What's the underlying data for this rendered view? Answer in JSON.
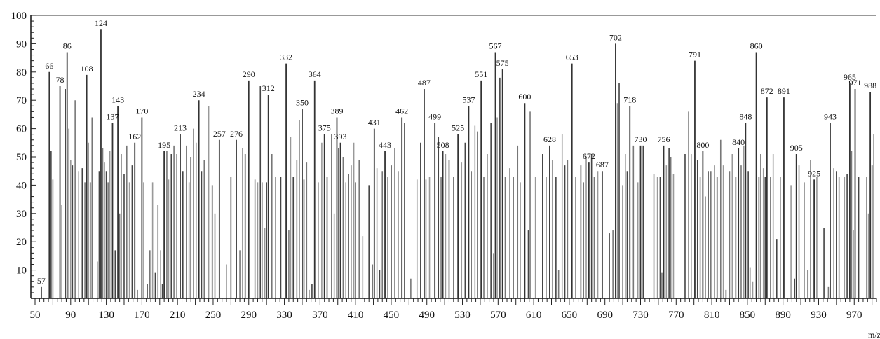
{
  "chart_data": {
    "type": "bar",
    "title": "",
    "xlabel": "m/z",
    "ylabel": "",
    "xlim": [
      50,
      995
    ],
    "ylim": [
      0,
      100
    ],
    "grid": false,
    "x_ticks": [
      "50",
      "90",
      "130",
      "170",
      "210",
      "250",
      "290",
      "330",
      "370",
      "410",
      "450",
      "490",
      "530",
      "570",
      "610",
      "650",
      "690",
      "730",
      "770",
      "810",
      "850",
      "890",
      "930",
      "970"
    ],
    "y_ticks": [
      "10",
      "20",
      "30",
      "40",
      "50",
      "60",
      "70",
      "80",
      "90",
      "100"
    ],
    "labeled_peaks": [
      {
        "mz": 57,
        "intensity": 4,
        "label": "57"
      },
      {
        "mz": 66,
        "intensity": 80,
        "label": "66"
      },
      {
        "mz": 78,
        "intensity": 75,
        "label": "78"
      },
      {
        "mz": 86,
        "intensity": 87,
        "label": "86"
      },
      {
        "mz": 108,
        "intensity": 79,
        "label": "108"
      },
      {
        "mz": 124,
        "intensity": 95,
        "label": "124"
      },
      {
        "mz": 137,
        "intensity": 62,
        "label": "137"
      },
      {
        "mz": 143,
        "intensity": 68,
        "label": "143"
      },
      {
        "mz": 162,
        "intensity": 55,
        "label": "162"
      },
      {
        "mz": 170,
        "intensity": 64,
        "label": "170"
      },
      {
        "mz": 195,
        "intensity": 52,
        "label": "195"
      },
      {
        "mz": 213,
        "intensity": 58,
        "label": "213"
      },
      {
        "mz": 234,
        "intensity": 70,
        "label": "234"
      },
      {
        "mz": 257,
        "intensity": 56,
        "label": "257"
      },
      {
        "mz": 276,
        "intensity": 56,
        "label": "276"
      },
      {
        "mz": 290,
        "intensity": 77,
        "label": "290"
      },
      {
        "mz": 312,
        "intensity": 72,
        "label": "312"
      },
      {
        "mz": 332,
        "intensity": 83,
        "label": "332"
      },
      {
        "mz": 350,
        "intensity": 67,
        "label": "350"
      },
      {
        "mz": 364,
        "intensity": 77,
        "label": "364"
      },
      {
        "mz": 375,
        "intensity": 58,
        "label": "375"
      },
      {
        "mz": 389,
        "intensity": 64,
        "label": "389"
      },
      {
        "mz": 393,
        "intensity": 55,
        "label": "393"
      },
      {
        "mz": 431,
        "intensity": 60,
        "label": "431"
      },
      {
        "mz": 443,
        "intensity": 52,
        "label": "443"
      },
      {
        "mz": 462,
        "intensity": 64,
        "label": "462"
      },
      {
        "mz": 487,
        "intensity": 74,
        "label": "487"
      },
      {
        "mz": 499,
        "intensity": 62,
        "label": "499"
      },
      {
        "mz": 508,
        "intensity": 52,
        "label": "508"
      },
      {
        "mz": 525,
        "intensity": 58,
        "label": "525"
      },
      {
        "mz": 537,
        "intensity": 68,
        "label": "537"
      },
      {
        "mz": 551,
        "intensity": 77,
        "label": "551"
      },
      {
        "mz": 567,
        "intensity": 87,
        "label": "567"
      },
      {
        "mz": 575,
        "intensity": 81,
        "label": "575"
      },
      {
        "mz": 600,
        "intensity": 69,
        "label": "600"
      },
      {
        "mz": 628,
        "intensity": 54,
        "label": "628"
      },
      {
        "mz": 653,
        "intensity": 83,
        "label": "653"
      },
      {
        "mz": 672,
        "intensity": 48,
        "label": "672"
      },
      {
        "mz": 687,
        "intensity": 45,
        "label": "687"
      },
      {
        "mz": 702,
        "intensity": 90,
        "label": "702"
      },
      {
        "mz": 718,
        "intensity": 68,
        "label": "718"
      },
      {
        "mz": 730,
        "intensity": 54,
        "label": "730"
      },
      {
        "mz": 756,
        "intensity": 54,
        "label": "756"
      },
      {
        "mz": 791,
        "intensity": 84,
        "label": "791"
      },
      {
        "mz": 800,
        "intensity": 52,
        "label": "800"
      },
      {
        "mz": 840,
        "intensity": 53,
        "label": "840"
      },
      {
        "mz": 848,
        "intensity": 62,
        "label": "848"
      },
      {
        "mz": 860,
        "intensity": 87,
        "label": "860"
      },
      {
        "mz": 872,
        "intensity": 71,
        "label": "872"
      },
      {
        "mz": 891,
        "intensity": 71,
        "label": "891"
      },
      {
        "mz": 905,
        "intensity": 51,
        "label": "905"
      },
      {
        "mz": 925,
        "intensity": 42,
        "label": "925"
      },
      {
        "mz": 943,
        "intensity": 62,
        "label": "943"
      },
      {
        "mz": 965,
        "intensity": 76,
        "label": "965"
      },
      {
        "mz": 971,
        "intensity": 74,
        "label": "971"
      },
      {
        "mz": 988,
        "intensity": 73,
        "label": "988"
      }
    ],
    "unlabeled_peaks": [
      {
        "mz": 68,
        "intensity": 52
      },
      {
        "mz": 70,
        "intensity": 42
      },
      {
        "mz": 80,
        "intensity": 33
      },
      {
        "mz": 84,
        "intensity": 74
      },
      {
        "mz": 88,
        "intensity": 60
      },
      {
        "mz": 90,
        "intensity": 49
      },
      {
        "mz": 92,
        "intensity": 47
      },
      {
        "mz": 95,
        "intensity": 70
      },
      {
        "mz": 99,
        "intensity": 45
      },
      {
        "mz": 103,
        "intensity": 46
      },
      {
        "mz": 106,
        "intensity": 41
      },
      {
        "mz": 110,
        "intensity": 55
      },
      {
        "mz": 112,
        "intensity": 41
      },
      {
        "mz": 114,
        "intensity": 64
      },
      {
        "mz": 120,
        "intensity": 13
      },
      {
        "mz": 122,
        "intensity": 45
      },
      {
        "mz": 126,
        "intensity": 53
      },
      {
        "mz": 128,
        "intensity": 48
      },
      {
        "mz": 130,
        "intensity": 45
      },
      {
        "mz": 132,
        "intensity": 41
      },
      {
        "mz": 134,
        "intensity": 52
      },
      {
        "mz": 140,
        "intensity": 17
      },
      {
        "mz": 145,
        "intensity": 30
      },
      {
        "mz": 147,
        "intensity": 51
      },
      {
        "mz": 150,
        "intensity": 44
      },
      {
        "mz": 153,
        "intensity": 54
      },
      {
        "mz": 156,
        "intensity": 41
      },
      {
        "mz": 159,
        "intensity": 47
      },
      {
        "mz": 165,
        "intensity": 3
      },
      {
        "mz": 172,
        "intensity": 41
      },
      {
        "mz": 176,
        "intensity": 5
      },
      {
        "mz": 179,
        "intensity": 17
      },
      {
        "mz": 182,
        "intensity": 41
      },
      {
        "mz": 185,
        "intensity": 9
      },
      {
        "mz": 188,
        "intensity": 33
      },
      {
        "mz": 191,
        "intensity": 17
      },
      {
        "mz": 193,
        "intensity": 5
      },
      {
        "mz": 198,
        "intensity": 52
      },
      {
        "mz": 200,
        "intensity": 42
      },
      {
        "mz": 203,
        "intensity": 51
      },
      {
        "mz": 206,
        "intensity": 54
      },
      {
        "mz": 209,
        "intensity": 51
      },
      {
        "mz": 216,
        "intensity": 45
      },
      {
        "mz": 220,
        "intensity": 54
      },
      {
        "mz": 223,
        "intensity": 41
      },
      {
        "mz": 225,
        "intensity": 50
      },
      {
        "mz": 228,
        "intensity": 60
      },
      {
        "mz": 231,
        "intensity": 55
      },
      {
        "mz": 237,
        "intensity": 45
      },
      {
        "mz": 240,
        "intensity": 49
      },
      {
        "mz": 245,
        "intensity": 68
      },
      {
        "mz": 249,
        "intensity": 40
      },
      {
        "mz": 252,
        "intensity": 30
      },
      {
        "mz": 265,
        "intensity": 12
      },
      {
        "mz": 270,
        "intensity": 43
      },
      {
        "mz": 280,
        "intensity": 17
      },
      {
        "mz": 283,
        "intensity": 53
      },
      {
        "mz": 286,
        "intensity": 51
      },
      {
        "mz": 297,
        "intensity": 42
      },
      {
        "mz": 300,
        "intensity": 41
      },
      {
        "mz": 303,
        "intensity": 75
      },
      {
        "mz": 305,
        "intensity": 41
      },
      {
        "mz": 308,
        "intensity": 25
      },
      {
        "mz": 310,
        "intensity": 41
      },
      {
        "mz": 316,
        "intensity": 51
      },
      {
        "mz": 320,
        "intensity": 43
      },
      {
        "mz": 326,
        "intensity": 43
      },
      {
        "mz": 335,
        "intensity": 24
      },
      {
        "mz": 337,
        "intensity": 57
      },
      {
        "mz": 340,
        "intensity": 43
      },
      {
        "mz": 344,
        "intensity": 49
      },
      {
        "mz": 347,
        "intensity": 63
      },
      {
        "mz": 352,
        "intensity": 42
      },
      {
        "mz": 355,
        "intensity": 48
      },
      {
        "mz": 358,
        "intensity": 3
      },
      {
        "mz": 361,
        "intensity": 5
      },
      {
        "mz": 368,
        "intensity": 41
      },
      {
        "mz": 372,
        "intensity": 55
      },
      {
        "mz": 378,
        "intensity": 43
      },
      {
        "mz": 383,
        "intensity": 58
      },
      {
        "mz": 386,
        "intensity": 30
      },
      {
        "mz": 391,
        "intensity": 53
      },
      {
        "mz": 396,
        "intensity": 50
      },
      {
        "mz": 399,
        "intensity": 41
      },
      {
        "mz": 402,
        "intensity": 44
      },
      {
        "mz": 405,
        "intensity": 47
      },
      {
        "mz": 408,
        "intensity": 55
      },
      {
        "mz": 410,
        "intensity": 41
      },
      {
        "mz": 414,
        "intensity": 49
      },
      {
        "mz": 418,
        "intensity": 22
      },
      {
        "mz": 425,
        "intensity": 40
      },
      {
        "mz": 429,
        "intensity": 12
      },
      {
        "mz": 434,
        "intensity": 46
      },
      {
        "mz": 437,
        "intensity": 10
      },
      {
        "mz": 440,
        "intensity": 45
      },
      {
        "mz": 446,
        "intensity": 43
      },
      {
        "mz": 450,
        "intensity": 47
      },
      {
        "mz": 454,
        "intensity": 53
      },
      {
        "mz": 458,
        "intensity": 45
      },
      {
        "mz": 465,
        "intensity": 62
      },
      {
        "mz": 472,
        "intensity": 7
      },
      {
        "mz": 479,
        "intensity": 42
      },
      {
        "mz": 483,
        "intensity": 55
      },
      {
        "mz": 489,
        "intensity": 42
      },
      {
        "mz": 493,
        "intensity": 43
      },
      {
        "mz": 503,
        "intensity": 57
      },
      {
        "mz": 506,
        "intensity": 43
      },
      {
        "mz": 511,
        "intensity": 51
      },
      {
        "mz": 515,
        "intensity": 49
      },
      {
        "mz": 520,
        "intensity": 43
      },
      {
        "mz": 529,
        "intensity": 48
      },
      {
        "mz": 533,
        "intensity": 55
      },
      {
        "mz": 540,
        "intensity": 45
      },
      {
        "mz": 544,
        "intensity": 61
      },
      {
        "mz": 547,
        "intensity": 59
      },
      {
        "mz": 554,
        "intensity": 43
      },
      {
        "mz": 558,
        "intensity": 51
      },
      {
        "mz": 562,
        "intensity": 62
      },
      {
        "mz": 565,
        "intensity": 16
      },
      {
        "mz": 569,
        "intensity": 64
      },
      {
        "mz": 572,
        "intensity": 78
      },
      {
        "mz": 578,
        "intensity": 43
      },
      {
        "mz": 583,
        "intensity": 46
      },
      {
        "mz": 587,
        "intensity": 43
      },
      {
        "mz": 592,
        "intensity": 54
      },
      {
        "mz": 595,
        "intensity": 41
      },
      {
        "mz": 604,
        "intensity": 24
      },
      {
        "mz": 606,
        "intensity": 66
      },
      {
        "mz": 612,
        "intensity": 43
      },
      {
        "mz": 620,
        "intensity": 51
      },
      {
        "mz": 624,
        "intensity": 43
      },
      {
        "mz": 631,
        "intensity": 49
      },
      {
        "mz": 635,
        "intensity": 43
      },
      {
        "mz": 638,
        "intensity": 10
      },
      {
        "mz": 642,
        "intensity": 58
      },
      {
        "mz": 645,
        "intensity": 47
      },
      {
        "mz": 648,
        "intensity": 49
      },
      {
        "mz": 657,
        "intensity": 43
      },
      {
        "mz": 663,
        "intensity": 47
      },
      {
        "mz": 666,
        "intensity": 41
      },
      {
        "mz": 669,
        "intensity": 50
      },
      {
        "mz": 675,
        "intensity": 51
      },
      {
        "mz": 678,
        "intensity": 43
      },
      {
        "mz": 682,
        "intensity": 45
      },
      {
        "mz": 695,
        "intensity": 23
      },
      {
        "mz": 699,
        "intensity": 24
      },
      {
        "mz": 704,
        "intensity": 69
      },
      {
        "mz": 706,
        "intensity": 76
      },
      {
        "mz": 710,
        "intensity": 40
      },
      {
        "mz": 713,
        "intensity": 51
      },
      {
        "mz": 715,
        "intensity": 45
      },
      {
        "mz": 722,
        "intensity": 54
      },
      {
        "mz": 727,
        "intensity": 41
      },
      {
        "mz": 733,
        "intensity": 54
      },
      {
        "mz": 745,
        "intensity": 44
      },
      {
        "mz": 749,
        "intensity": 43
      },
      {
        "mz": 752,
        "intensity": 43
      },
      {
        "mz": 754,
        "intensity": 9
      },
      {
        "mz": 759,
        "intensity": 47
      },
      {
        "mz": 762,
        "intensity": 53
      },
      {
        "mz": 764,
        "intensity": 50
      },
      {
        "mz": 767,
        "intensity": 44
      },
      {
        "mz": 780,
        "intensity": 51
      },
      {
        "mz": 784,
        "intensity": 66
      },
      {
        "mz": 787,
        "intensity": 51
      },
      {
        "mz": 794,
        "intensity": 49
      },
      {
        "mz": 797,
        "intensity": 43
      },
      {
        "mz": 803,
        "intensity": 36
      },
      {
        "mz": 806,
        "intensity": 45
      },
      {
        "mz": 809,
        "intensity": 45
      },
      {
        "mz": 813,
        "intensity": 47
      },
      {
        "mz": 816,
        "intensity": 43
      },
      {
        "mz": 820,
        "intensity": 56
      },
      {
        "mz": 823,
        "intensity": 47
      },
      {
        "mz": 826,
        "intensity": 3
      },
      {
        "mz": 830,
        "intensity": 45
      },
      {
        "mz": 833,
        "intensity": 51
      },
      {
        "mz": 837,
        "intensity": 43
      },
      {
        "mz": 843,
        "intensity": 47
      },
      {
        "mz": 846,
        "intensity": 54
      },
      {
        "mz": 851,
        "intensity": 45
      },
      {
        "mz": 853,
        "intensity": 11
      },
      {
        "mz": 856,
        "intensity": 6
      },
      {
        "mz": 863,
        "intensity": 43
      },
      {
        "mz": 865,
        "intensity": 51
      },
      {
        "mz": 868,
        "intensity": 46
      },
      {
        "mz": 870,
        "intensity": 43
      },
      {
        "mz": 876,
        "intensity": 43
      },
      {
        "mz": 879,
        "intensity": 51
      },
      {
        "mz": 883,
        "intensity": 21
      },
      {
        "mz": 887,
        "intensity": 43
      },
      {
        "mz": 899,
        "intensity": 40
      },
      {
        "mz": 903,
        "intensity": 7
      },
      {
        "mz": 908,
        "intensity": 47
      },
      {
        "mz": 914,
        "intensity": 41
      },
      {
        "mz": 918,
        "intensity": 10
      },
      {
        "mz": 921,
        "intensity": 49
      },
      {
        "mz": 928,
        "intensity": 43
      },
      {
        "mz": 936,
        "intensity": 25
      },
      {
        "mz": 941,
        "intensity": 4
      },
      {
        "mz": 947,
        "intensity": 46
      },
      {
        "mz": 950,
        "intensity": 45
      },
      {
        "mz": 953,
        "intensity": 43
      },
      {
        "mz": 959,
        "intensity": 43
      },
      {
        "mz": 962,
        "intensity": 44
      },
      {
        "mz": 967,
        "intensity": 52
      },
      {
        "mz": 969,
        "intensity": 24
      },
      {
        "mz": 975,
        "intensity": 43
      },
      {
        "mz": 984,
        "intensity": 43
      },
      {
        "mz": 986,
        "intensity": 30
      },
      {
        "mz": 990,
        "intensity": 47
      },
      {
        "mz": 992,
        "intensity": 58
      }
    ]
  }
}
